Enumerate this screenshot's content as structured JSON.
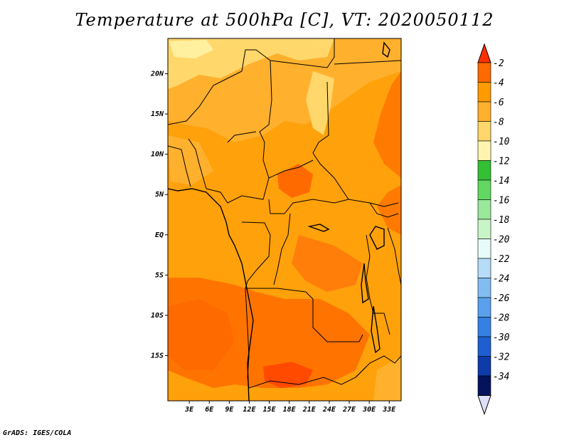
{
  "title": "Temperature at 500hPa [C], VT: 2020050112",
  "footer": "GrADS: IGES/COLA",
  "map": {
    "lat_labels": [
      "20N",
      "15N",
      "10N",
      "5N",
      "EQ",
      "5S",
      "10S",
      "15S"
    ],
    "lat_values": [
      20,
      15,
      10,
      5,
      0,
      -5,
      -10,
      -15
    ],
    "lon_labels": [
      "3E",
      "6E",
      "9E",
      "12E",
      "15E",
      "18E",
      "21E",
      "24E",
      "27E",
      "30E",
      "33E"
    ],
    "lon_values": [
      3,
      6,
      9,
      12,
      15,
      18,
      21,
      24,
      27,
      30,
      33
    ],
    "lon_range": [
      0,
      35
    ],
    "lat_range": [
      -20,
      25
    ]
  },
  "colorbar": {
    "labels": [
      "-2",
      "-4",
      "-6",
      "-8",
      "-10",
      "-12",
      "-14",
      "-16",
      "-18",
      "-20",
      "-22",
      "-24",
      "-26",
      "-28",
      "-30",
      "-32",
      "-34"
    ],
    "colors": [
      "#ff3000",
      "#ff6a00",
      "#ff9a00",
      "#ffb02d",
      "#ffd76a",
      "#fff5b0",
      "#34c034",
      "#62d862",
      "#9ae89a",
      "#c8f5c8",
      "#e6fbfa",
      "#b6dcf7",
      "#82bdf2",
      "#5aa0ed",
      "#3580e3",
      "#1d5fd0",
      "#0d3ba8",
      "#05135c",
      "#dde0f8"
    ]
  }
}
